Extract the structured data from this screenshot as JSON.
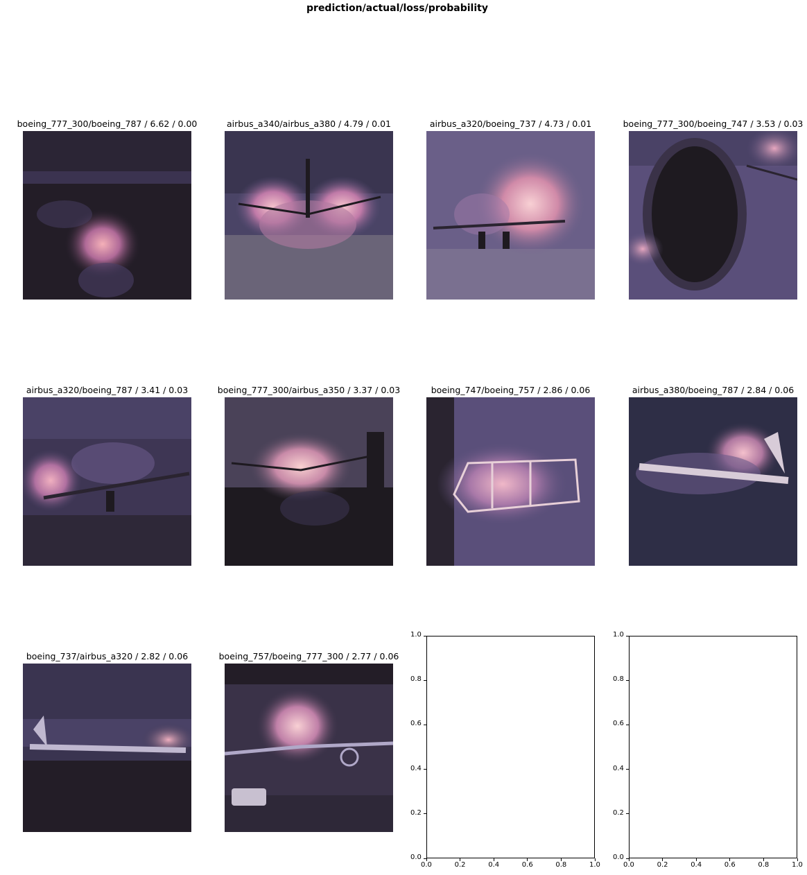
{
  "figure": {
    "suptitle": "prediction/actual/loss/probability"
  },
  "panels": [
    {
      "title": "boeing_777_300/boeing_787 / 6.62 / 0.00"
    },
    {
      "title": "airbus_a340/airbus_a380 / 4.79 / 0.01"
    },
    {
      "title": "airbus_a320/boeing_737 / 4.73 / 0.01"
    },
    {
      "title": "boeing_777_300/boeing_747 / 3.53 / 0.03"
    },
    {
      "title": "airbus_a320/boeing_787 / 3.41 / 0.03"
    },
    {
      "title": "boeing_777_300/airbus_a350 / 3.37 / 0.03"
    },
    {
      "title": "boeing_747/boeing_757 / 2.86 / 0.06"
    },
    {
      "title": "airbus_a380/boeing_787 / 2.84 / 0.06"
    },
    {
      "title": "boeing_737/airbus_a320 / 2.82 / 0.06"
    },
    {
      "title": "boeing_757/boeing_777_300 / 2.77 / 0.06"
    }
  ],
  "empty_axes": {
    "xticks": [
      "0.0",
      "0.2",
      "0.4",
      "0.6",
      "0.8",
      "1.0"
    ],
    "yticks": [
      "0.0",
      "0.2",
      "0.4",
      "0.6",
      "0.8",
      "1.0"
    ]
  },
  "colors": {
    "heatmap_dark": "#1f1a22",
    "heatmap_mid": "#5a4f7a",
    "heatmap_hot": "#f0b8c8"
  }
}
